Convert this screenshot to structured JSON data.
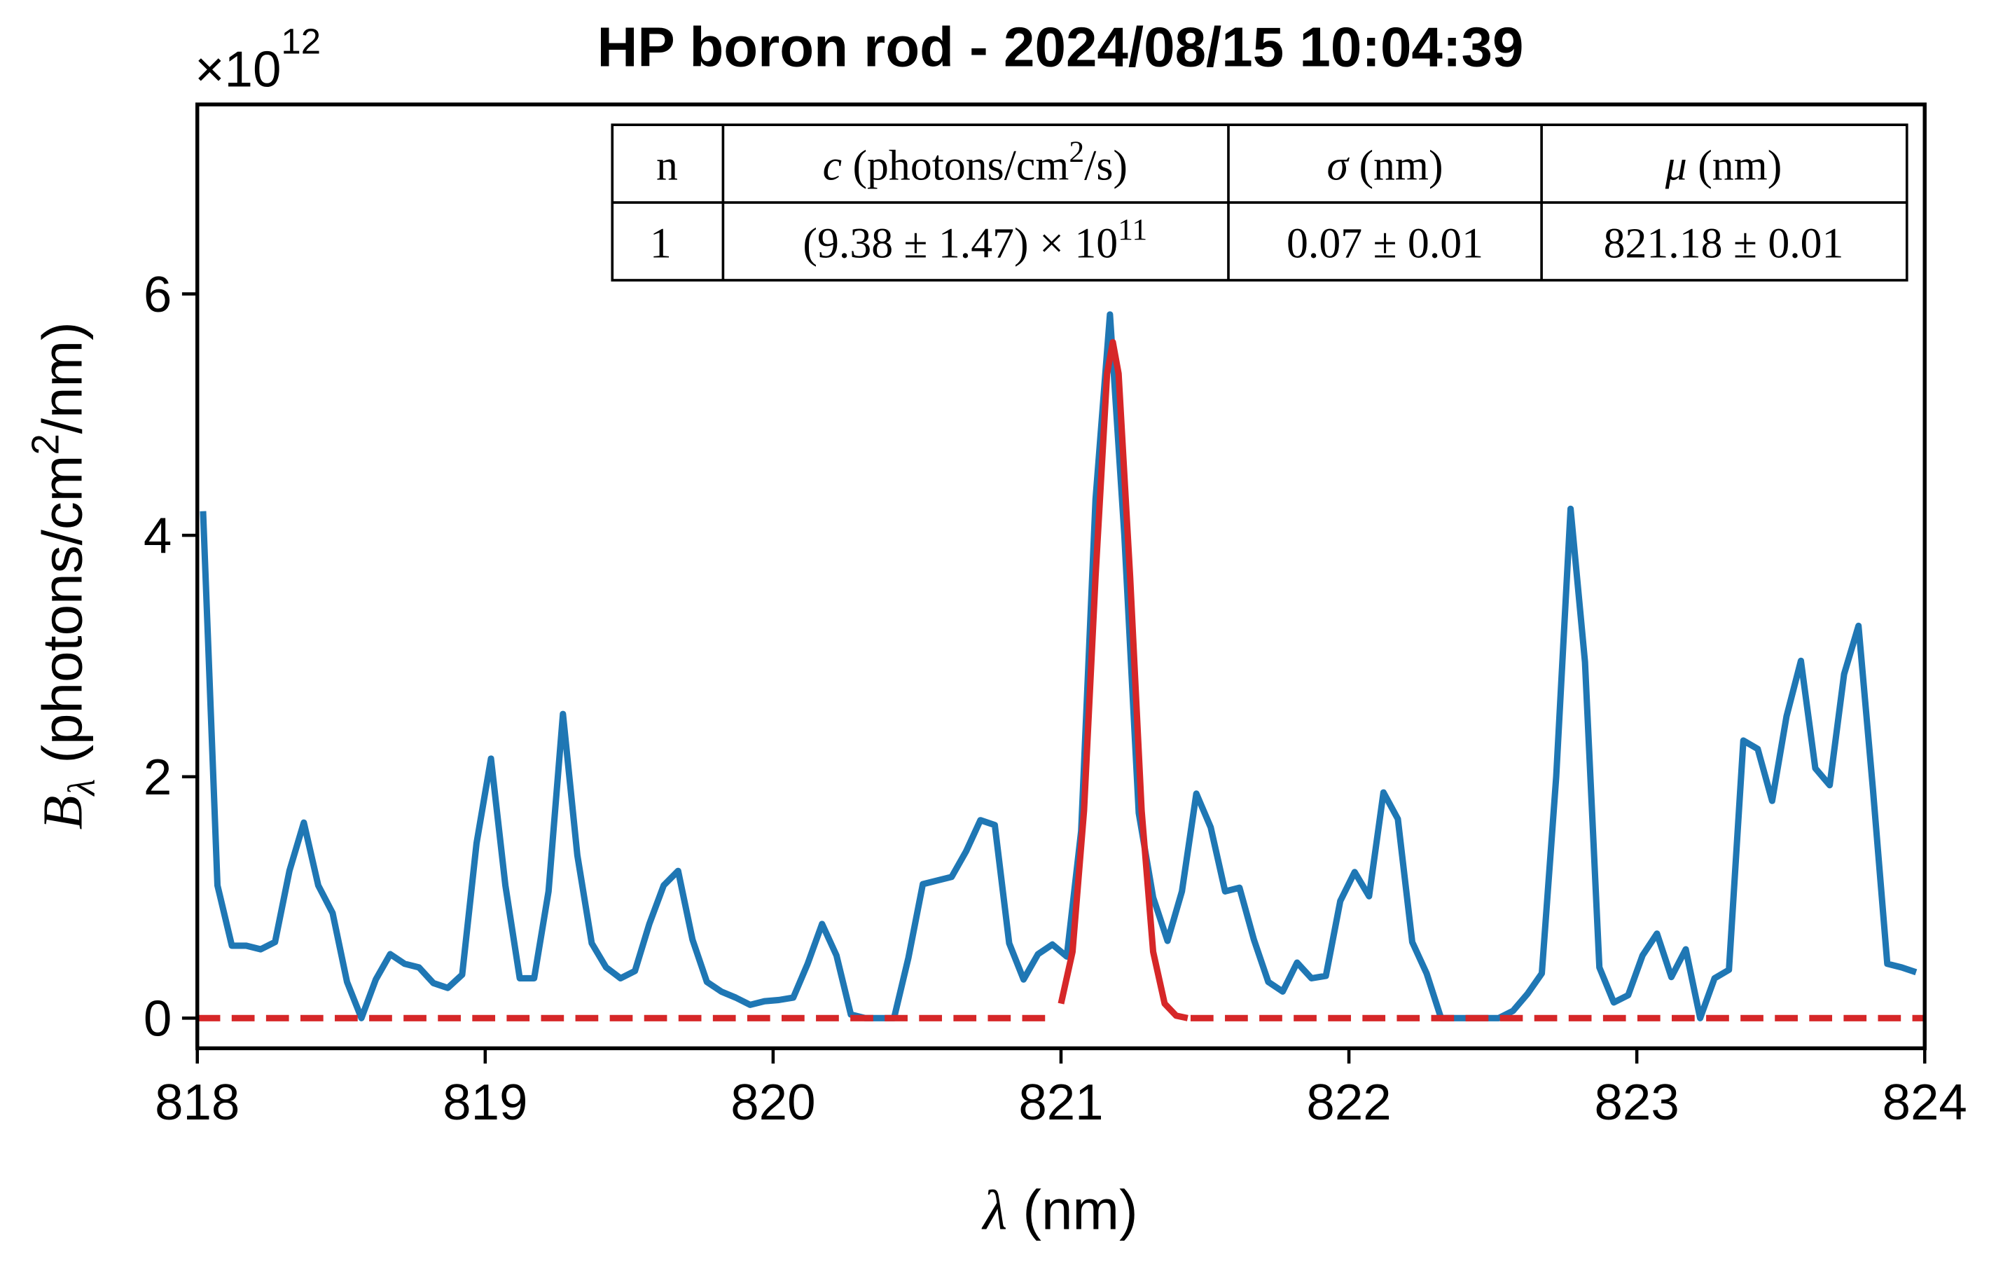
{
  "chart_data": {
    "type": "line",
    "title": "HP boron rod - 2024/08/15 10:04:39",
    "multiplier": [
      "×10",
      "12"
    ],
    "xlabel": [
      "λ",
      " (nm)"
    ],
    "ylabel": [
      "B",
      "λ",
      " (photons/cm",
      "2",
      "/nm)"
    ],
    "xlim": [
      818,
      824
    ],
    "ylim": [
      -0.25,
      7.57
    ],
    "xticks": [
      818,
      819,
      820,
      821,
      822,
      823,
      824
    ],
    "yticks": [
      0,
      2,
      4,
      6
    ],
    "series": [
      {
        "color": "#1f77b4",
        "dash": false,
        "x": [
          818.02,
          818.07,
          818.12,
          818.17,
          818.22,
          818.27,
          818.32,
          818.37,
          818.42,
          818.47,
          818.52,
          818.57,
          818.62,
          818.67,
          818.72,
          818.77,
          818.82,
          818.87,
          818.92,
          818.97,
          819.02,
          819.07,
          819.12,
          819.17,
          819.22,
          819.27,
          819.32,
          819.37,
          819.42,
          819.47,
          819.52,
          819.57,
          819.62,
          819.67,
          819.72,
          819.77,
          819.82,
          819.87,
          819.92,
          819.97,
          820.02,
          820.07,
          820.12,
          820.17,
          820.22,
          820.27,
          820.32,
          820.37,
          820.42,
          820.47,
          820.52,
          820.57,
          820.62,
          820.67,
          820.72,
          820.77,
          820.82,
          820.87,
          820.92,
          820.97,
          821.02,
          821.07,
          821.12,
          821.17,
          821.22,
          821.27,
          821.32,
          821.37,
          821.42,
          821.47,
          821.52,
          821.57,
          821.62,
          821.67,
          821.72,
          821.77,
          821.82,
          821.87,
          821.92,
          821.97,
          822.02,
          822.07,
          822.12,
          822.17,
          822.22,
          822.27,
          822.32,
          822.37,
          822.42,
          822.47,
          822.52,
          822.57,
          822.62,
          822.67,
          822.72,
          822.77,
          822.82,
          822.87,
          822.92,
          822.97,
          823.02,
          823.07,
          823.12,
          823.17,
          823.22,
          823.27,
          823.32,
          823.37,
          823.42,
          823.47,
          823.52,
          823.57,
          823.62,
          823.67,
          823.72,
          823.77,
          823.82,
          823.87,
          823.92,
          823.97
        ],
        "values": [
          4.2,
          1.1,
          0.6,
          0.6,
          0.57,
          0.63,
          1.22,
          1.62,
          1.1,
          0.87,
          0.3,
          0.0,
          0.32,
          0.53,
          0.45,
          0.42,
          0.29,
          0.25,
          0.36,
          1.45,
          2.15,
          1.1,
          0.33,
          0.33,
          1.05,
          2.52,
          1.35,
          0.62,
          0.42,
          0.33,
          0.39,
          0.78,
          1.1,
          1.22,
          0.65,
          0.3,
          0.22,
          0.17,
          0.11,
          0.14,
          0.15,
          0.17,
          0.45,
          0.78,
          0.52,
          0.03,
          0.0,
          0.0,
          0.0,
          0.5,
          1.11,
          1.14,
          1.17,
          1.38,
          1.64,
          1.6,
          0.62,
          0.32,
          0.53,
          0.61,
          0.51,
          1.55,
          4.3,
          5.83,
          4.0,
          1.7,
          1.0,
          0.64,
          1.05,
          1.86,
          1.58,
          1.05,
          1.08,
          0.65,
          0.3,
          0.22,
          0.46,
          0.33,
          0.35,
          0.97,
          1.21,
          1.01,
          1.87,
          1.65,
          0.63,
          0.37,
          0.0,
          0.0,
          0.0,
          0.0,
          0.0,
          0.06,
          0.2,
          0.37,
          2.0,
          4.22,
          2.95,
          0.42,
          0.13,
          0.19,
          0.52,
          0.7,
          0.34,
          0.57,
          0.0,
          0.33,
          0.4,
          2.3,
          2.23,
          1.8,
          2.5,
          2.96,
          2.07,
          1.93,
          2.85,
          3.25,
          1.9,
          0.45,
          0.42,
          0.38
        ]
      },
      {
        "color": "#d62728",
        "dash": true,
        "x": [
          818,
          820.96
        ],
        "values": [
          0,
          0
        ]
      },
      {
        "color": "#d62728",
        "dash": false,
        "x": [
          821.0,
          821.04,
          821.08,
          821.12,
          821.16,
          821.18,
          821.2,
          821.24,
          821.28,
          821.32,
          821.36,
          821.4,
          821.44
        ],
        "values": [
          0.12,
          0.55,
          1.72,
          3.66,
          5.34,
          5.6,
          5.34,
          3.66,
          1.72,
          0.55,
          0.12,
          0.02,
          0.0
        ]
      },
      {
        "color": "#d62728",
        "dash": true,
        "x": [
          821.45,
          824
        ],
        "values": [
          0,
          0
        ]
      }
    ]
  },
  "table": {
    "header": [
      [
        "n"
      ],
      [
        "c",
        " (photons/cm",
        "2",
        "/s)"
      ],
      [
        "σ",
        " (nm)"
      ],
      [
        "μ",
        " (nm)"
      ]
    ],
    "rows": [
      [
        [
          "1"
        ],
        [
          "(9.38 ± 1.47) × 10",
          "11"
        ],
        [
          "0.07 ± 0.01"
        ],
        [
          "821.18 ± 0.01"
        ]
      ]
    ]
  }
}
